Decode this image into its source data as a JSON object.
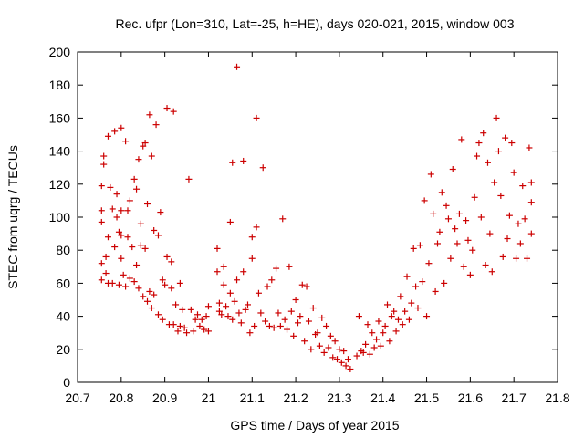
{
  "chart_data": {
    "type": "scatter",
    "title": "Rec. ufpr (Lon=310, Lat=-25, h=HE), days 020-021, 2015, window 003",
    "xlabel": "GPS time / Days of year 2015",
    "ylabel": "STEC from uqrg / TECUs",
    "xlim": [
      20.7,
      21.8
    ],
    "ylim": [
      0,
      200
    ],
    "xticks": [
      "20.7",
      "20.8",
      "20.9",
      "21",
      "21.1",
      "21.2",
      "21.3",
      "21.4",
      "21.5",
      "21.6",
      "21.7",
      "21.8"
    ],
    "yticks": [
      "0",
      "20",
      "40",
      "60",
      "80",
      "100",
      "120",
      "140",
      "160",
      "180",
      "200"
    ],
    "grid": false,
    "legend": "none",
    "marker": "+",
    "color": "#cc0000",
    "points": [
      [
        20.755,
        62
      ],
      [
        20.755,
        72
      ],
      [
        20.755,
        97
      ],
      [
        20.755,
        104
      ],
      [
        20.755,
        119
      ],
      [
        20.76,
        132
      ],
      [
        20.76,
        137
      ],
      [
        20.765,
        66
      ],
      [
        20.765,
        76
      ],
      [
        20.77,
        60
      ],
      [
        20.77,
        88
      ],
      [
        20.77,
        149
      ],
      [
        20.775,
        118
      ],
      [
        20.78,
        60
      ],
      [
        20.78,
        105
      ],
      [
        20.785,
        82
      ],
      [
        20.785,
        152
      ],
      [
        20.79,
        100
      ],
      [
        20.79,
        114
      ],
      [
        20.795,
        59
      ],
      [
        20.795,
        91
      ],
      [
        20.8,
        75
      ],
      [
        20.8,
        89
      ],
      [
        20.8,
        104
      ],
      [
        20.8,
        154
      ],
      [
        20.805,
        65
      ],
      [
        20.81,
        58
      ],
      [
        20.81,
        146
      ],
      [
        20.815,
        88
      ],
      [
        20.815,
        104
      ],
      [
        20.82,
        110
      ],
      [
        20.82,
        63
      ],
      [
        20.825,
        82
      ],
      [
        20.83,
        61
      ],
      [
        20.83,
        123
      ],
      [
        20.835,
        71
      ],
      [
        20.835,
        117
      ],
      [
        20.84,
        57
      ],
      [
        20.84,
        135
      ],
      [
        20.845,
        83
      ],
      [
        20.845,
        96
      ],
      [
        20.85,
        143
      ],
      [
        20.85,
        52
      ],
      [
        20.855,
        145
      ],
      [
        20.855,
        81
      ],
      [
        20.86,
        108
      ],
      [
        20.86,
        49
      ],
      [
        20.865,
        162
      ],
      [
        20.865,
        55
      ],
      [
        20.87,
        137
      ],
      [
        20.87,
        45
      ],
      [
        20.875,
        92
      ],
      [
        20.875,
        53
      ],
      [
        20.88,
        156
      ],
      [
        20.885,
        41
      ],
      [
        20.885,
        89
      ],
      [
        20.89,
        103
      ],
      [
        20.895,
        38
      ],
      [
        20.895,
        62
      ],
      [
        20.9,
        59
      ],
      [
        20.905,
        76
      ],
      [
        20.905,
        166
      ],
      [
        20.91,
        35
      ],
      [
        20.915,
        57
      ],
      [
        20.915,
        73
      ],
      [
        20.92,
        35
      ],
      [
        20.92,
        164
      ],
      [
        20.925,
        47
      ],
      [
        20.93,
        31
      ],
      [
        20.935,
        60
      ],
      [
        20.935,
        34
      ],
      [
        20.94,
        44
      ],
      [
        20.945,
        33
      ],
      [
        20.95,
        30
      ],
      [
        20.955,
        123
      ],
      [
        20.96,
        44
      ],
      [
        20.965,
        31
      ],
      [
        20.97,
        38
      ],
      [
        20.975,
        41
      ],
      [
        20.98,
        34
      ],
      [
        20.985,
        38
      ],
      [
        20.99,
        32
      ],
      [
        20.995,
        40
      ],
      [
        21.0,
        31
      ],
      [
        21.0,
        46
      ],
      [
        21.02,
        81
      ],
      [
        21.02,
        67
      ],
      [
        21.025,
        43
      ],
      [
        21.025,
        48
      ],
      [
        21.03,
        41
      ],
      [
        21.035,
        59
      ],
      [
        21.035,
        70
      ],
      [
        21.04,
        46
      ],
      [
        21.045,
        40
      ],
      [
        21.05,
        97
      ],
      [
        21.05,
        54
      ],
      [
        21.055,
        38
      ],
      [
        21.055,
        133
      ],
      [
        21.06,
        49
      ],
      [
        21.065,
        62
      ],
      [
        21.065,
        191
      ],
      [
        21.07,
        42
      ],
      [
        21.075,
        36
      ],
      [
        21.08,
        134
      ],
      [
        21.08,
        67
      ],
      [
        21.085,
        44
      ],
      [
        21.09,
        47
      ],
      [
        21.095,
        30
      ],
      [
        21.1,
        75
      ],
      [
        21.1,
        88
      ],
      [
        21.105,
        34
      ],
      [
        21.11,
        94
      ],
      [
        21.11,
        160
      ],
      [
        21.115,
        54
      ],
      [
        21.12,
        42
      ],
      [
        21.125,
        130
      ],
      [
        21.13,
        37
      ],
      [
        21.135,
        58
      ],
      [
        21.14,
        34
      ],
      [
        21.145,
        62
      ],
      [
        21.15,
        33
      ],
      [
        21.155,
        69
      ],
      [
        21.16,
        42
      ],
      [
        21.165,
        34
      ],
      [
        21.17,
        99
      ],
      [
        21.175,
        38
      ],
      [
        21.18,
        32
      ],
      [
        21.185,
        70
      ],
      [
        21.19,
        43
      ],
      [
        21.195,
        28
      ],
      [
        21.2,
        50
      ],
      [
        21.205,
        36
      ],
      [
        21.21,
        40
      ],
      [
        21.215,
        59
      ],
      [
        21.22,
        25
      ],
      [
        21.225,
        58
      ],
      [
        21.23,
        37
      ],
      [
        21.235,
        20
      ],
      [
        21.24,
        45
      ],
      [
        21.245,
        29
      ],
      [
        21.25,
        30
      ],
      [
        21.255,
        22
      ],
      [
        21.26,
        39
      ],
      [
        21.265,
        18
      ],
      [
        21.27,
        34
      ],
      [
        21.275,
        21
      ],
      [
        21.28,
        28
      ],
      [
        21.285,
        15
      ],
      [
        21.29,
        25
      ],
      [
        21.295,
        14
      ],
      [
        21.3,
        20
      ],
      [
        21.305,
        12
      ],
      [
        21.31,
        19
      ],
      [
        21.315,
        10
      ],
      [
        21.32,
        14
      ],
      [
        21.325,
        8
      ],
      [
        21.34,
        16
      ],
      [
        21.345,
        40
      ],
      [
        21.35,
        19
      ],
      [
        21.355,
        18
      ],
      [
        21.36,
        23
      ],
      [
        21.365,
        35
      ],
      [
        21.37,
        17
      ],
      [
        21.375,
        30
      ],
      [
        21.38,
        21
      ],
      [
        21.385,
        26
      ],
      [
        21.39,
        37
      ],
      [
        21.395,
        22
      ],
      [
        21.4,
        30
      ],
      [
        21.405,
        34
      ],
      [
        21.41,
        47
      ],
      [
        21.415,
        25
      ],
      [
        21.42,
        40
      ],
      [
        21.425,
        43
      ],
      [
        21.43,
        31
      ],
      [
        21.435,
        38
      ],
      [
        21.44,
        52
      ],
      [
        21.445,
        35
      ],
      [
        21.45,
        43
      ],
      [
        21.455,
        64
      ],
      [
        21.46,
        38
      ],
      [
        21.465,
        48
      ],
      [
        21.47,
        81
      ],
      [
        21.475,
        58
      ],
      [
        21.48,
        45
      ],
      [
        21.485,
        83
      ],
      [
        21.49,
        61
      ],
      [
        21.495,
        110
      ],
      [
        21.5,
        40
      ],
      [
        21.505,
        72
      ],
      [
        21.51,
        126
      ],
      [
        21.515,
        102
      ],
      [
        21.52,
        55
      ],
      [
        21.525,
        84
      ],
      [
        21.53,
        91
      ],
      [
        21.535,
        115
      ],
      [
        21.54,
        60
      ],
      [
        21.545,
        107
      ],
      [
        21.55,
        99
      ],
      [
        21.555,
        75
      ],
      [
        21.56,
        129
      ],
      [
        21.565,
        93
      ],
      [
        21.57,
        84
      ],
      [
        21.575,
        102
      ],
      [
        21.58,
        147
      ],
      [
        21.585,
        70
      ],
      [
        21.59,
        98
      ],
      [
        21.595,
        86
      ],
      [
        21.6,
        65
      ],
      [
        21.605,
        80
      ],
      [
        21.61,
        112
      ],
      [
        21.615,
        137
      ],
      [
        21.62,
        145
      ],
      [
        21.625,
        100
      ],
      [
        21.63,
        151
      ],
      [
        21.635,
        71
      ],
      [
        21.64,
        133
      ],
      [
        21.645,
        90
      ],
      [
        21.65,
        67
      ],
      [
        21.655,
        121
      ],
      [
        21.66,
        160
      ],
      [
        21.665,
        140
      ],
      [
        21.67,
        113
      ],
      [
        21.675,
        76
      ],
      [
        21.68,
        148
      ],
      [
        21.685,
        87
      ],
      [
        21.69,
        101
      ],
      [
        21.695,
        145
      ],
      [
        21.7,
        127
      ],
      [
        21.705,
        75
      ],
      [
        21.71,
        96
      ],
      [
        21.715,
        84
      ],
      [
        21.72,
        119
      ],
      [
        21.725,
        99
      ],
      [
        21.73,
        75
      ],
      [
        21.735,
        142
      ],
      [
        21.74,
        121
      ],
      [
        21.74,
        109
      ],
      [
        21.74,
        90
      ]
    ]
  }
}
